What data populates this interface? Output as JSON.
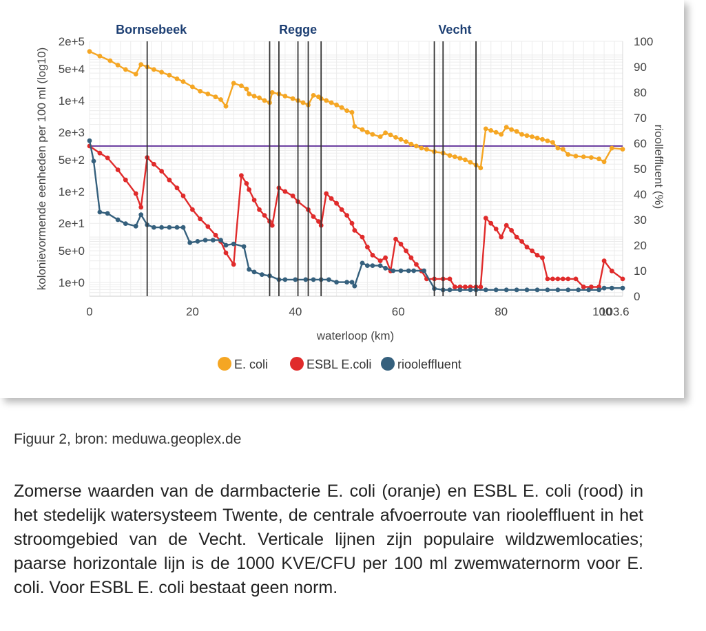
{
  "chart_data": {
    "type": "line",
    "xlabel": "waterloop (km)",
    "ylabel": "kolonievormende eenheden per 100 ml (log10)",
    "y2label": "rioolleffluent (%)",
    "xlim": [
      0,
      103.6
    ],
    "xticks": [
      "0",
      "20",
      "40",
      "60",
      "80",
      "100",
      "103.6"
    ],
    "y_scale": "log10",
    "ylim": [
      0.5,
      200000
    ],
    "yticks": [
      {
        "value": 1,
        "label": "1e+0"
      },
      {
        "value": 5,
        "label": "5e+0"
      },
      {
        "value": 20,
        "label": "2e+1"
      },
      {
        "value": 100,
        "label": "1e+2"
      },
      {
        "value": 500,
        "label": "5e+2"
      },
      {
        "value": 2000,
        "label": "2e+3"
      },
      {
        "value": 10000,
        "label": "1e+4"
      },
      {
        "value": 50000,
        "label": "5e+4"
      },
      {
        "value": 200000,
        "label": "2e+5"
      }
    ],
    "y2lim": [
      0,
      100
    ],
    "y2ticks": [
      "0",
      "10",
      "20",
      "30",
      "40",
      "50",
      "60",
      "70",
      "80",
      "90",
      "100"
    ],
    "grid": true,
    "legend_position": "bottom",
    "swim_locations": {
      "labels": [
        {
          "name": "Bornsebeek",
          "x": 12
        },
        {
          "name": "Regge",
          "x": 40.5
        },
        {
          "name": "Vecht",
          "x": 71
        }
      ],
      "lines_x": [
        11.2,
        35,
        36.8,
        40.5,
        42.5,
        45,
        67,
        68.7,
        75.1
      ]
    },
    "norm_line": {
      "value": 1000,
      "color": "#6b3fa0"
    },
    "series": [
      {
        "name": "E. coli",
        "color": "#f5a623",
        "axis": "left",
        "x": [
          0,
          2,
          4,
          5.5,
          7,
          9,
          10,
          11.2,
          12.5,
          14,
          15.5,
          17,
          18.2,
          20,
          21.5,
          23,
          24.5,
          25.5,
          26.5,
          28,
          29.5,
          30.5,
          31,
          32,
          33,
          34,
          35,
          35.5,
          36.8,
          38,
          39.5,
          40.5,
          41.5,
          42.5,
          43.5,
          44.5,
          45,
          46,
          47,
          48,
          49,
          50,
          51,
          51.5,
          53,
          54,
          55,
          56.5,
          57.5,
          58.5,
          59.5,
          60.5,
          61.5,
          62.5,
          63.5,
          64.5,
          65.5,
          67,
          68.7,
          70,
          71,
          72,
          73,
          74,
          75.1,
          76,
          77,
          78,
          79,
          80,
          81,
          82,
          83,
          84,
          85,
          86,
          87,
          88,
          89,
          90,
          91,
          92,
          93,
          94.5,
          96,
          97.5,
          99,
          100,
          101.5,
          103.6
        ],
        "y": [
          120000,
          95000,
          75000,
          60000,
          48000,
          38000,
          62000,
          55000,
          48000,
          42000,
          36000,
          30000,
          26000,
          20000,
          16000,
          14000,
          12000,
          10500,
          7500,
          24000,
          21000,
          18000,
          14000,
          12500,
          11500,
          10000,
          9000,
          15000,
          14000,
          12500,
          11000,
          10000,
          9000,
          8000,
          13000,
          12000,
          11000,
          10000,
          9000,
          8000,
          7000,
          6000,
          5500,
          2700,
          2300,
          2000,
          1800,
          1600,
          1950,
          1750,
          1550,
          1400,
          1250,
          1100,
          1000,
          900,
          850,
          750,
          700,
          620,
          580,
          540,
          500,
          440,
          380,
          330,
          2400,
          2200,
          2000,
          1800,
          2600,
          2300,
          2100,
          1800,
          1700,
          1600,
          1500,
          1400,
          1300,
          1200,
          900,
          850,
          650,
          600,
          580,
          560,
          520,
          450,
          900,
          850
        ]
      },
      {
        "name": "ESBL E.coli",
        "color": "#e02b2b",
        "axis": "left",
        "x": [
          0,
          2,
          3.5,
          5.5,
          7,
          9,
          10,
          11.2,
          12.5,
          14,
          15.5,
          17,
          18.2,
          20,
          21.5,
          23,
          24.5,
          25.5,
          26.5,
          28,
          29.5,
          30.5,
          31,
          32,
          33,
          34,
          35,
          35.5,
          36.8,
          38,
          39.5,
          40.5,
          42.5,
          43.5,
          44.5,
          45,
          46,
          47,
          48,
          49,
          50,
          51,
          51.5,
          53,
          54,
          55,
          56.5,
          57.5,
          58.5,
          59.5,
          60.5,
          61.5,
          62.5,
          63.5,
          64.5,
          65.5,
          67,
          68.7,
          70,
          71,
          72,
          73,
          74,
          75.1,
          76,
          77,
          78,
          79,
          80,
          81,
          82,
          83,
          84,
          85,
          86,
          87,
          88,
          89,
          90,
          91,
          92,
          93,
          94.5,
          96,
          97.5,
          99,
          100,
          101.5,
          103.6
        ],
        "y": [
          1000,
          700,
          550,
          300,
          180,
          90,
          45,
          560,
          400,
          280,
          180,
          120,
          80,
          40,
          25,
          17,
          11,
          8,
          4.5,
          2.5,
          225,
          150,
          110,
          65,
          40,
          30,
          22,
          18,
          120,
          100,
          80,
          60,
          40,
          28,
          22,
          18,
          90,
          70,
          55,
          40,
          30,
          20,
          14,
          10,
          6,
          4,
          3,
          3.5,
          1.8,
          9,
          7,
          5,
          3.5,
          2.5,
          1.8,
          1.2,
          1.2,
          1.2,
          1.2,
          0.8,
          0.8,
          0.8,
          0.8,
          0.8,
          0.8,
          26,
          20,
          15,
          10,
          18,
          14,
          10,
          8,
          6,
          5,
          4,
          3.5,
          1.2,
          1.2,
          1.2,
          1.2,
          1.2,
          1.2,
          0.8,
          0.8,
          0.8,
          3,
          1.8,
          1.2
        ]
      },
      {
        "name": "riooleffluent",
        "color": "#35607d",
        "axis": "right",
        "x": [
          0,
          0.8,
          2,
          3.5,
          5.5,
          7,
          9,
          10,
          11.2,
          12.5,
          14,
          15.5,
          17,
          18.2,
          19.5,
          21,
          22.5,
          24,
          25.5,
          26.5,
          28,
          30,
          31,
          32,
          33.5,
          35,
          36.8,
          38,
          40,
          42,
          43.5,
          45,
          46.5,
          48,
          50,
          51,
          51.5,
          53,
          54,
          55,
          56.5,
          57.5,
          59,
          60.5,
          62,
          63,
          65,
          67,
          68.7,
          70,
          72,
          74,
          75.1,
          77,
          79,
          81,
          83,
          85,
          87,
          89,
          91,
          93,
          95,
          97,
          99,
          100,
          101.5,
          103.6
        ],
        "y": [
          61,
          53,
          33,
          32.5,
          30,
          28.5,
          27.5,
          32,
          28,
          27,
          27,
          27,
          27,
          27,
          21,
          21.5,
          22,
          22,
          22,
          20,
          20.5,
          19.5,
          10.5,
          9.5,
          8.5,
          8,
          6.5,
          6.5,
          6.5,
          6.5,
          6.5,
          6.5,
          6.5,
          5.5,
          5.5,
          5.5,
          4,
          13,
          12,
          12,
          12,
          11,
          10,
          10,
          10,
          10,
          10,
          3,
          2.5,
          2.5,
          2.5,
          2.5,
          2.5,
          2.5,
          2.5,
          2.5,
          2.5,
          2.5,
          2.5,
          2.5,
          2.5,
          2.5,
          2.5,
          2.5,
          2.5,
          3.2,
          3.2,
          3.2
        ]
      }
    ]
  },
  "caption": "Figuur 2, bron: meduwa.geoplex.de",
  "description": "Zomerse waarden van de darmbacterie E. coli (oranje) en ESBL E. coli (rood) in het stedelijk watersysteem Twente, de centrale afvoerroute van rioo­leffluent in het stroomgebied van de Vecht. Verticale lijnen zijn populaire wildzwemlocaties; paarse horizontale lijn is de 1000 KVE/CFU per 100 ml zwemwaternorm voor E. coli. Voor ESBL E. coli bestaat geen norm."
}
